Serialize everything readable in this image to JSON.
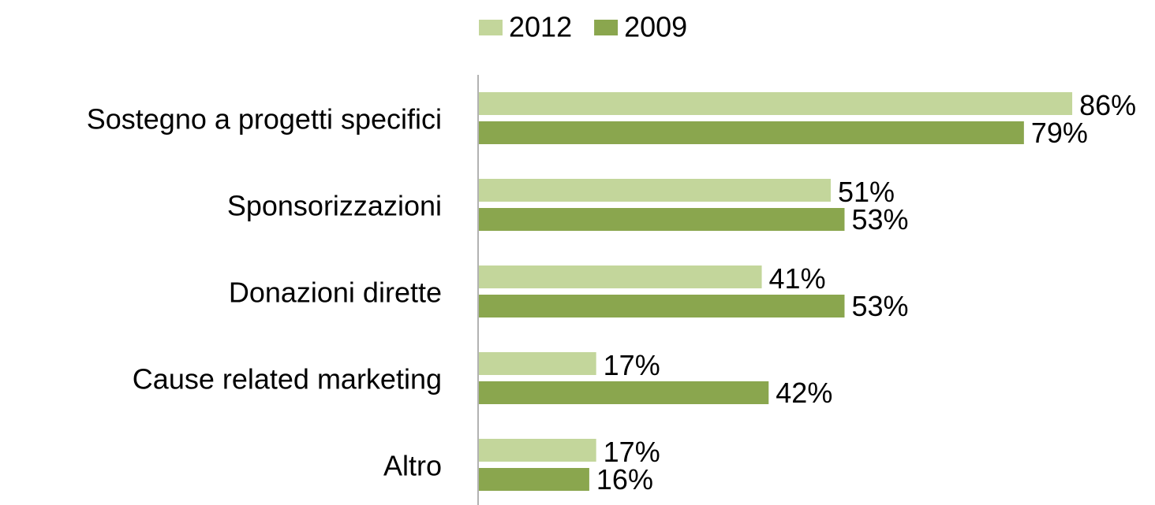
{
  "chart_data": {
    "type": "bar",
    "orientation": "horizontal",
    "categories": [
      "Sostegno a progetti specifici",
      "Sponsorizzazioni",
      "Donazioni dirette",
      "Cause related marketing",
      "Altro"
    ],
    "series": [
      {
        "name": "2012",
        "color": "#c3d69b",
        "values": [
          86,
          51,
          41,
          17,
          17
        ],
        "value_labels": [
          "86%",
          "51%",
          "41%",
          "17%",
          "17%"
        ]
      },
      {
        "name": "2009",
        "color": "#8aa64e",
        "values": [
          79,
          53,
          53,
          42,
          16
        ],
        "value_labels": [
          "79%",
          "53%",
          "53%",
          "42%",
          "16%"
        ]
      }
    ],
    "legend": "top"
  }
}
